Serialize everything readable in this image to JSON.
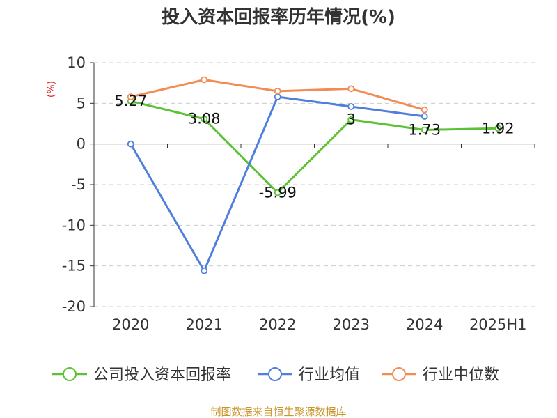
{
  "chart_data": {
    "type": "line",
    "title": "投入资本回报率历年情况(%)",
    "unit_label": "(%)",
    "categories": [
      "2020",
      "2021",
      "2022",
      "2023",
      "2024",
      "2025H1"
    ],
    "ylim": [
      -20,
      10
    ],
    "yticks": [
      10,
      5,
      0,
      -5,
      -10,
      -15,
      -20
    ],
    "grid": true,
    "legend_position": "bottom",
    "series": [
      {
        "name": "公司投入资本回报率",
        "color": "#5cc134",
        "values": [
          5.27,
          3.08,
          -5.99,
          3.0,
          1.73,
          1.92
        ],
        "labels": [
          "5.27",
          "3.08",
          "-5.99",
          "3",
          "1.73",
          "1.92"
        ]
      },
      {
        "name": "行业均值",
        "color": "#4f7fdc",
        "values": [
          0.0,
          -15.6,
          5.8,
          4.6,
          3.4,
          null
        ]
      },
      {
        "name": "行业中位数",
        "color": "#f28c55",
        "values": [
          5.8,
          7.9,
          6.5,
          6.8,
          4.2,
          null
        ]
      }
    ],
    "source": "制图数据来自恒生聚源数据库"
  }
}
